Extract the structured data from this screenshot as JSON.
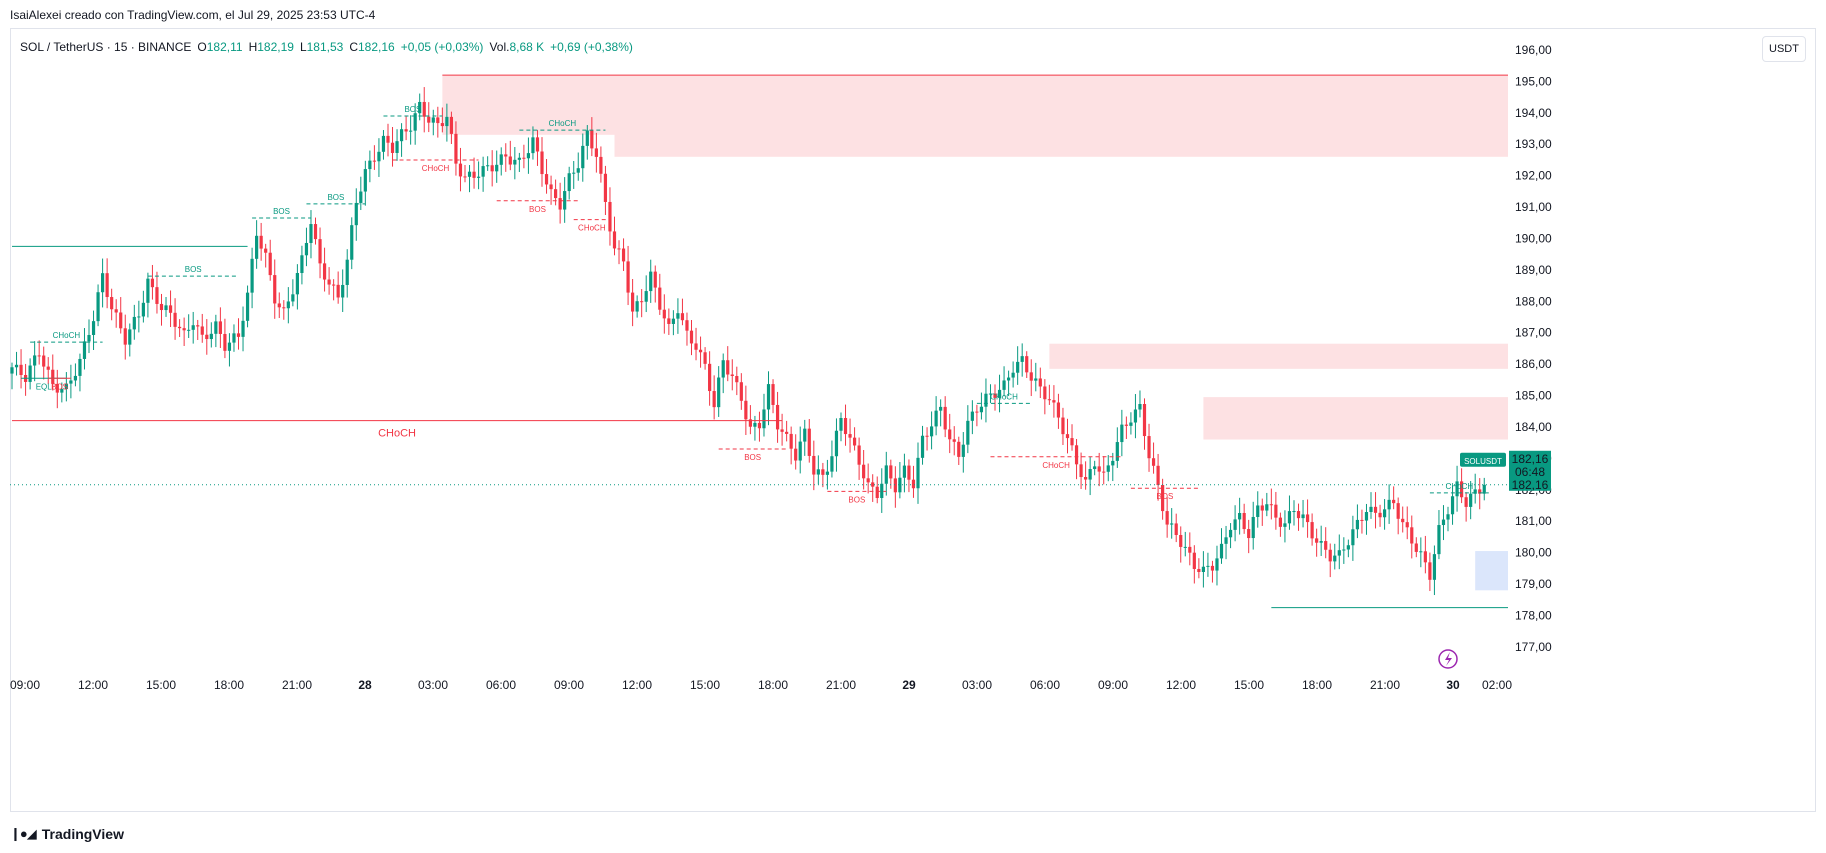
{
  "header": {
    "credit": "IsaiAlexei creado con TradingView.com, el Jul 29, 2025 23:53 UTC-4"
  },
  "legend": {
    "symbol": "SOL / TetherUS · 15 · BINANCE",
    "o_label": "O",
    "o_value": "182,11",
    "h_label": "H",
    "h_value": "182,19",
    "l_label": "L",
    "l_value": "181,53",
    "c_label": "C",
    "c_value": "182,16",
    "change": "+0,05 (+0,03%)",
    "vol_label": "Vol.",
    "vol_value": "8,68 K",
    "vol_change": "+0,69 (+0,38%)"
  },
  "currency_button": "USDT",
  "footer": {
    "brand": "TradingView"
  },
  "colors": {
    "up": "#089981",
    "down": "#f23645",
    "supply_zone": "#fde1e3",
    "demand_zone": "#dbe6fb",
    "price_tag": "#089981"
  },
  "chart_data": {
    "type": "candlestick",
    "symbol": "SOLUSDT",
    "ylim": [
      176.2,
      196.7
    ],
    "y_ticks": [
      "196,00",
      "195,00",
      "194,00",
      "193,00",
      "192,00",
      "191,00",
      "190,00",
      "189,00",
      "188,00",
      "187,00",
      "186,00",
      "185,00",
      "184,00",
      "183,00",
      "182,00",
      "181,00",
      "180,00",
      "179,00",
      "178,00",
      "177,00"
    ],
    "x_ticks": [
      "09:00",
      "12:00",
      "15:00",
      "18:00",
      "21:00",
      "28",
      "03:00",
      "06:00",
      "09:00",
      "12:00",
      "15:00",
      "18:00",
      "21:00",
      "29",
      "03:00",
      "06:00",
      "09:00",
      "12:00",
      "15:00",
      "18:00",
      "21:00",
      "30",
      "02:00"
    ],
    "last_price": {
      "label": "SOLUSDT",
      "price": "182,16",
      "countdown": "06:48",
      "value": 182.16
    },
    "path_points": [
      [
        0,
        185.9
      ],
      [
        3,
        185.6
      ],
      [
        6,
        186.4
      ],
      [
        9,
        185.3
      ],
      [
        12,
        185.2
      ],
      [
        15,
        186.1
      ],
      [
        18,
        187.5
      ],
      [
        20,
        188.8
      ],
      [
        22,
        187.8
      ],
      [
        25,
        186.8
      ],
      [
        28,
        187.6
      ],
      [
        30,
        188.6
      ],
      [
        33,
        187.8
      ],
      [
        35,
        187.6
      ],
      [
        38,
        186.9
      ],
      [
        40,
        187.4
      ],
      [
        42,
        186.8
      ],
      [
        45,
        187.2
      ],
      [
        47,
        186.6
      ],
      [
        50,
        186.9
      ],
      [
        52,
        188.2
      ],
      [
        54,
        190.2
      ],
      [
        56,
        189.4
      ],
      [
        58,
        188.1
      ],
      [
        60,
        187.6
      ],
      [
        62,
        188.4
      ],
      [
        64,
        189.3
      ],
      [
        66,
        190.6
      ],
      [
        68,
        189.1
      ],
      [
        70,
        188.6
      ],
      [
        72,
        188.1
      ],
      [
        74,
        189.3
      ],
      [
        76,
        191.2
      ],
      [
        78,
        192.1
      ],
      [
        80,
        192.6
      ],
      [
        82,
        193.1
      ],
      [
        84,
        192.9
      ],
      [
        86,
        193.3
      ],
      [
        88,
        193.6
      ],
      [
        90,
        194.2
      ],
      [
        92,
        193.8
      ],
      [
        94,
        193.6
      ],
      [
        96,
        193.9
      ],
      [
        98,
        192.4
      ],
      [
        100,
        191.9
      ],
      [
        103,
        192.1
      ],
      [
        106,
        192.3
      ],
      [
        109,
        192.6
      ],
      [
        112,
        192.4
      ],
      [
        115,
        193.1
      ],
      [
        117,
        192.2
      ],
      [
        119,
        191.4
      ],
      [
        121,
        191.1
      ],
      [
        123,
        191.9
      ],
      [
        125,
        192.4
      ],
      [
        127,
        193.3
      ],
      [
        129,
        192.7
      ],
      [
        131,
        191.1
      ],
      [
        133,
        189.7
      ],
      [
        135,
        189.3
      ],
      [
        137,
        187.6
      ],
      [
        139,
        188.1
      ],
      [
        141,
        188.8
      ],
      [
        143,
        187.9
      ],
      [
        145,
        187.1
      ],
      [
        147,
        187.8
      ],
      [
        149,
        186.9
      ],
      [
        151,
        186.6
      ],
      [
        153,
        185.9
      ],
      [
        155,
        184.7
      ],
      [
        157,
        186.1
      ],
      [
        159,
        185.6
      ],
      [
        161,
        184.9
      ],
      [
        163,
        183.9
      ],
      [
        165,
        184.1
      ],
      [
        167,
        185.2
      ],
      [
        169,
        184.1
      ],
      [
        171,
        183.6
      ],
      [
        173,
        183.1
      ],
      [
        175,
        183.8
      ],
      [
        177,
        182.6
      ],
      [
        179,
        182.4
      ],
      [
        181,
        183.1
      ],
      [
        183,
        184.3
      ],
      [
        185,
        183.6
      ],
      [
        187,
        182.9
      ],
      [
        189,
        182.1
      ],
      [
        191,
        181.9
      ],
      [
        193,
        182.6
      ],
      [
        195,
        182.1
      ],
      [
        197,
        182.6
      ],
      [
        199,
        182.2
      ],
      [
        201,
        183.6
      ],
      [
        203,
        184.1
      ],
      [
        205,
        184.6
      ],
      [
        207,
        183.6
      ],
      [
        209,
        183.1
      ],
      [
        211,
        184.1
      ],
      [
        213,
        184.6
      ],
      [
        215,
        184.9
      ],
      [
        217,
        185.1
      ],
      [
        219,
        185.3
      ],
      [
        221,
        185.9
      ],
      [
        223,
        186.1
      ],
      [
        225,
        185.6
      ],
      [
        227,
        185.2
      ],
      [
        229,
        184.9
      ],
      [
        231,
        184.3
      ],
      [
        233,
        183.6
      ],
      [
        235,
        182.9
      ],
      [
        237,
        182.2
      ],
      [
        239,
        182.9
      ],
      [
        241,
        182.4
      ],
      [
        243,
        183.1
      ],
      [
        245,
        183.9
      ],
      [
        247,
        184.3
      ],
      [
        249,
        184.6
      ],
      [
        251,
        183.1
      ],
      [
        253,
        182.1
      ],
      [
        255,
        180.9
      ],
      [
        257,
        180.6
      ],
      [
        259,
        180.1
      ],
      [
        261,
        179.6
      ],
      [
        263,
        179.4
      ],
      [
        265,
        179.6
      ],
      [
        267,
        180.1
      ],
      [
        269,
        180.9
      ],
      [
        271,
        181.1
      ],
      [
        273,
        180.6
      ],
      [
        275,
        181.4
      ],
      [
        277,
        181.6
      ],
      [
        279,
        181.1
      ],
      [
        281,
        180.9
      ],
      [
        283,
        181.4
      ],
      [
        285,
        181.1
      ],
      [
        287,
        180.6
      ],
      [
        289,
        180.2
      ],
      [
        291,
        179.9
      ],
      [
        293,
        179.9
      ],
      [
        295,
        180.4
      ],
      [
        297,
        180.9
      ],
      [
        299,
        181.4
      ],
      [
        301,
        181.2
      ],
      [
        303,
        181.4
      ],
      [
        305,
        181.6
      ],
      [
        307,
        180.9
      ],
      [
        309,
        180.4
      ],
      [
        311,
        179.9
      ],
      [
        313,
        179.3
      ],
      [
        315,
        180.7
      ],
      [
        317,
        181.4
      ],
      [
        319,
        182.1
      ],
      [
        321,
        181.6
      ],
      [
        323,
        181.9
      ],
      [
        325,
        182.16
      ]
    ],
    "zones": [
      {
        "kind": "supply",
        "top": 195.2,
        "bottom": 193.3,
        "from_index": 95
      },
      {
        "kind": "supply",
        "top": 193.5,
        "bottom": 192.6,
        "from_index": 133
      },
      {
        "kind": "supply",
        "top": 186.65,
        "bottom": 185.85,
        "from_index": 229
      },
      {
        "kind": "supply",
        "top": 184.95,
        "bottom": 183.6,
        "from_index": 263
      },
      {
        "kind": "demand",
        "top": 180.05,
        "bottom": 178.8,
        "from_index": 323
      }
    ],
    "levels": [
      {
        "price": 189.75,
        "color": "up",
        "from_index": 0,
        "to_index": 52,
        "label": ""
      },
      {
        "price": 184.2,
        "color": "down",
        "from_index": 0,
        "to_index": 170,
        "label": "CHoCH",
        "big": true
      },
      {
        "price": 178.25,
        "color": "up",
        "from_index": 278,
        "to_index": 350,
        "label": ""
      }
    ],
    "structure_labels": [
      {
        "text": "CHoCH",
        "i1": 4,
        "i2": 20,
        "price": 186.7,
        "color": "up",
        "dash": true
      },
      {
        "text": "EQL",
        "i1": 2,
        "i2": 12,
        "price": 185.55,
        "color": "up",
        "dash": false,
        "below": true
      },
      {
        "text": "BOS",
        "i1": 8,
        "i2": 13,
        "price": 185.55,
        "color": "down",
        "dash": false,
        "below": true
      },
      {
        "text": "BOS",
        "i1": 30,
        "i2": 50,
        "price": 188.8,
        "color": "up",
        "dash": true
      },
      {
        "text": "BOS",
        "i1": 53,
        "i2": 66,
        "price": 190.65,
        "color": "up",
        "dash": true
      },
      {
        "text": "BOS",
        "i1": 65,
        "i2": 78,
        "price": 191.1,
        "color": "up",
        "dash": true
      },
      {
        "text": "BOS",
        "i1": 82,
        "i2": 95,
        "price": 193.9,
        "color": "up",
        "dash": true
      },
      {
        "text": "CHoCH",
        "i1": 84,
        "i2": 103,
        "price": 192.5,
        "color": "down",
        "dash": true,
        "below": true
      },
      {
        "text": "CHoCH",
        "i1": 112,
        "i2": 131,
        "price": 193.45,
        "color": "up",
        "dash": true
      },
      {
        "text": "BOS",
        "i1": 107,
        "i2": 125,
        "price": 191.2,
        "color": "down",
        "dash": true,
        "below": true
      },
      {
        "text": "CHoCH",
        "i1": 124,
        "i2": 132,
        "price": 190.6,
        "color": "down",
        "dash": true,
        "below": true
      },
      {
        "text": "BOS",
        "i1": 156,
        "i2": 171,
        "price": 183.3,
        "color": "down",
        "dash": true,
        "below": true
      },
      {
        "text": "BOS",
        "i1": 180,
        "i2": 193,
        "price": 181.95,
        "color": "down",
        "dash": true,
        "below": true
      },
      {
        "text": "CHoCH",
        "i1": 213,
        "i2": 225,
        "price": 184.75,
        "color": "up",
        "dash": true
      },
      {
        "text": "CHoCH",
        "i1": 216,
        "i2": 245,
        "price": 183.05,
        "color": "down",
        "dash": true,
        "below": true
      },
      {
        "text": "BOS",
        "i1": 247,
        "i2": 262,
        "price": 182.05,
        "color": "down",
        "dash": true,
        "below": true
      },
      {
        "text": "CHoCH",
        "i1": 313,
        "i2": 326,
        "price": 181.9,
        "color": "up",
        "dash": true
      }
    ]
  }
}
